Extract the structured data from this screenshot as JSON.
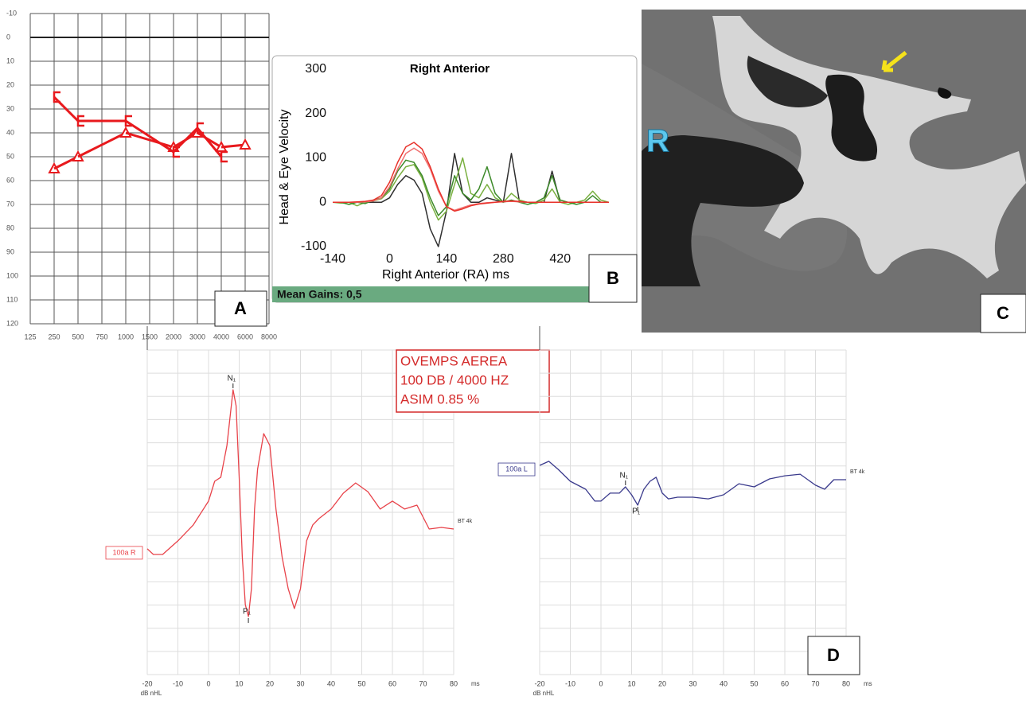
{
  "chart_data": [
    {
      "type": "line",
      "y_inverted": true,
      "grid": true,
      "categories": [
        "125",
        "250",
        "500",
        "750",
        "1000",
        "1500",
        "2000",
        "3000",
        "4000",
        "6000",
        "8000"
      ],
      "ylim": [
        -10,
        120
      ],
      "yticks": [
        -10,
        0,
        10,
        20,
        30,
        40,
        50,
        60,
        70,
        80,
        90,
        100,
        110,
        120
      ],
      "series": [
        {
          "color": "#e8191d",
          "marker": "triangle",
          "values": [
            null,
            55,
            50,
            null,
            40,
            null,
            46,
            40,
            46,
            45,
            null
          ]
        },
        {
          "color": "#e8191d",
          "marker": "bracket",
          "values": [
            null,
            25,
            35,
            null,
            35,
            null,
            48,
            38,
            50,
            null,
            null
          ]
        }
      ]
    },
    {
      "type": "line",
      "title": "Right Anterior",
      "xlabel": "Right Anterior (RA) ms",
      "ylabel": "Head & Eye Velocity",
      "mean_gains": "Mean Gains: 0,5",
      "xlim": [
        -140,
        540
      ],
      "xticks": [
        -140,
        0,
        140,
        280,
        420
      ],
      "ylim": [
        -100,
        300
      ],
      "yticks": [
        -100,
        0,
        100,
        200,
        300
      ],
      "x": [
        -140,
        -120,
        -100,
        -80,
        -60,
        -40,
        -20,
        0,
        20,
        40,
        60,
        80,
        100,
        120,
        140,
        160,
        180,
        200,
        220,
        240,
        260,
        280,
        300,
        320,
        340,
        360,
        380,
        400,
        420,
        440,
        460,
        480,
        500,
        520,
        540
      ],
      "series": [
        {
          "color": "#2f2f2f",
          "values": [
            0,
            0,
            0,
            0,
            0,
            0,
            0,
            10,
            40,
            60,
            50,
            20,
            -60,
            -100,
            -20,
            110,
            20,
            0,
            0,
            10,
            5,
            0,
            110,
            0,
            0,
            0,
            0,
            70,
            0,
            0,
            0,
            0,
            0,
            0,
            0
          ]
        },
        {
          "color": "#7ab040",
          "values": [
            0,
            -2,
            0,
            -8,
            0,
            3,
            8,
            25,
            55,
            80,
            85,
            55,
            0,
            -40,
            -20,
            40,
            100,
            20,
            10,
            40,
            10,
            0,
            20,
            5,
            0,
            -3,
            5,
            30,
            0,
            -5,
            0,
            5,
            25,
            5,
            0
          ]
        },
        {
          "color": "#3d8a2a",
          "values": [
            0,
            0,
            -5,
            0,
            -3,
            5,
            10,
            30,
            70,
            95,
            90,
            60,
            10,
            -30,
            -10,
            60,
            20,
            5,
            30,
            80,
            20,
            0,
            5,
            0,
            -5,
            0,
            10,
            60,
            5,
            0,
            -5,
            0,
            15,
            0,
            0
          ]
        },
        {
          "color": "#f07070",
          "values": [
            0,
            0,
            0,
            0,
            1,
            3,
            10,
            35,
            75,
            110,
            122,
            110,
            75,
            25,
            -10,
            -18,
            -12,
            -6,
            -3,
            -1,
            0,
            1,
            2,
            1,
            0,
            0,
            0,
            0,
            0,
            0,
            0,
            0,
            0,
            0,
            0
          ]
        },
        {
          "color": "#e8312a",
          "values": [
            0,
            0,
            0,
            1,
            2,
            5,
            15,
            45,
            90,
            125,
            135,
            120,
            80,
            30,
            -10,
            -20,
            -15,
            -8,
            -4,
            -2,
            0,
            2,
            3,
            2,
            0,
            0,
            0,
            0,
            0,
            0,
            0,
            0,
            0,
            0,
            0
          ]
        }
      ]
    },
    {
      "type": "line",
      "grid": true,
      "xlabel": "ms",
      "unit_label": "dB nHL",
      "trace_label": "100a R",
      "end_label": "BT 4k",
      "annotation": [
        "OVEMPS AEREA",
        "100 DB / 4000 HZ",
        "ASIM 0.85 %"
      ],
      "xlim": [
        -20,
        80
      ],
      "xticks": [
        -20,
        -10,
        0,
        10,
        20,
        30,
        40,
        50,
        60,
        70,
        80
      ],
      "ylim": [
        -10,
        10
      ],
      "peaks": [
        {
          "label": "N₁",
          "x": 8
        },
        {
          "label": "P₁",
          "x": 13
        }
      ],
      "x": [
        -20,
        -18,
        -15,
        -10,
        -5,
        0,
        2,
        4,
        6,
        8,
        9,
        10,
        11,
        12,
        13,
        14,
        15,
        16,
        18,
        20,
        22,
        24,
        26,
        28,
        30,
        32,
        34,
        36,
        40,
        44,
        48,
        52,
        56,
        60,
        64,
        68,
        72,
        76,
        80
      ],
      "series": [
        {
          "color": "#e8434a",
          "values": [
            -2.25,
            -2.6,
            -2.6,
            -1.76,
            -0.78,
            0.69,
            1.91,
            2.16,
            4.12,
            7.55,
            6.57,
            2.16,
            -2.75,
            -5.69,
            -6.42,
            -4.71,
            0.2,
            2.65,
            4.85,
            4.12,
            0.2,
            -2.75,
            -4.71,
            -5.93,
            -4.71,
            -1.76,
            -0.78,
            -0.39,
            0.2,
            1.18,
            1.81,
            1.27,
            0.2,
            0.69,
            0.2,
            0.44,
            -1.03,
            -0.93,
            -1.03
          ]
        }
      ]
    },
    {
      "type": "line",
      "grid": true,
      "xlabel": "ms",
      "unit_label": "dB nHL",
      "trace_label": "100a L",
      "end_label": "BT 4k",
      "xlim": [
        -20,
        80
      ],
      "xticks": [
        -20,
        -10,
        0,
        10,
        20,
        30,
        40,
        50,
        60,
        70,
        80
      ],
      "ylim": [
        -10,
        10
      ],
      "peaks": [
        {
          "label": "N₁",
          "x": 8
        },
        {
          "label": "P₁",
          "x": 12
        }
      ],
      "x": [
        -20,
        -17,
        -14,
        -10,
        -5,
        -2,
        0,
        3,
        6,
        8,
        10,
        12,
        14,
        16,
        18,
        20,
        22,
        25,
        30,
        35,
        40,
        45,
        50,
        55,
        60,
        65,
        70,
        73,
        76,
        80
      ],
      "series": [
        {
          "color": "#3a3a8c",
          "values": [
            2.89,
            3.14,
            2.65,
            1.91,
            1.42,
            0.69,
            0.69,
            1.18,
            1.18,
            1.57,
            1.08,
            0.44,
            1.42,
            1.91,
            2.16,
            1.18,
            0.83,
            0.93,
            0.93,
            0.83,
            1.08,
            1.76,
            1.57,
            2.06,
            2.25,
            2.35,
            1.67,
            1.42,
            2.01,
            2.01
          ]
        }
      ]
    }
  ],
  "panel_labels": [
    "A",
    "B",
    "C",
    "D"
  ],
  "ct_image": {
    "side_label": "R"
  }
}
